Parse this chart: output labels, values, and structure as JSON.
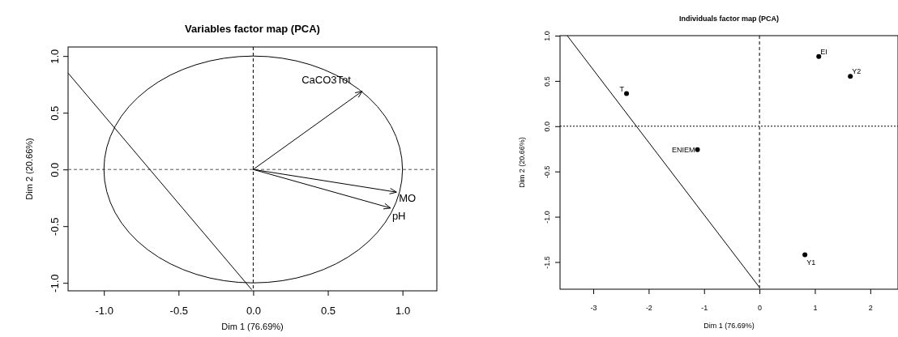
{
  "chart_data": [
    {
      "type": "line",
      "title": "Variables factor map (PCA)",
      "xlabel": "Dim 1 (76.69%)",
      "ylabel": "Dim 2 (20.66%)",
      "xlim": [
        -1.24,
        1.23
      ],
      "ylim": [
        -1.07,
        1.08
      ],
      "xticks": [
        {
          "value": -1,
          "label": "-1.0"
        },
        -0.5,
        {
          "value": 0,
          "label": "0.0"
        },
        0.5,
        {
          "value": 1,
          "label": "1.0"
        }
      ],
      "yticks": [
        {
          "value": -1,
          "label": "-1.0"
        },
        -0.5,
        {
          "value": 0,
          "label": "0.0"
        },
        0.5,
        {
          "value": 1,
          "label": "1.0"
        }
      ],
      "line_style": "solid",
      "series": [
        {
          "color": "#000000",
          "x": [
            -1.24,
            -0.01
          ],
          "values": [
            0.85,
            -1.06
          ]
        },
        {
          "color": "#000000",
          "x": [
            0,
            0.73
          ],
          "values": [
            0,
            0.69
          ]
        },
        {
          "color": "#000000",
          "x": [
            0,
            0.96
          ],
          "values": [
            0,
            -0.2
          ]
        },
        {
          "color": "#000000",
          "x": [
            0,
            0.92
          ],
          "values": [
            0,
            -0.34
          ]
        }
      ],
      "ref_lines": [
        {
          "axis": "x",
          "value": 0,
          "color": "#000000",
          "line_style": "dashed"
        },
        {
          "axis": "y",
          "value": 0,
          "color": "#555555",
          "line_style": "dashed"
        }
      ],
      "annotations": [
        {
          "text": "CaCO3Tot",
          "x": 0.73,
          "y": 0.69
        },
        {
          "text": "MO",
          "x": 0.96,
          "y": -0.2
        },
        {
          "text": "pH",
          "x": 0.92,
          "y": -0.34
        }
      ]
    },
    {
      "type": "scatter",
      "title": "Individuals factor map (PCA)",
      "xlabel": "Dim 1 (76.69%)",
      "ylabel": "Dim 2 (20.66%)",
      "xlim": [
        -3.6,
        2.5
      ],
      "ylim": [
        -1.8,
        1.0
      ],
      "xticks": [
        -3,
        -2,
        -1,
        0,
        1,
        2
      ],
      "yticks": [
        -1.5,
        {
          "value": -1,
          "label": "-1.0"
        },
        -0.5,
        {
          "value": 0,
          "label": "0.0"
        },
        0.5,
        {
          "value": 1,
          "label": "1.0"
        }
      ],
      "series": [
        {
          "color": "#000000",
          "marker": "circle",
          "x": [
            -2.4,
            -1.12,
            1.07,
            1.64,
            0.82
          ],
          "values": [
            0.36,
            -0.26,
            0.77,
            0.55,
            -1.42
          ]
        },
        {
          "type": "line",
          "color": "#000000",
          "marker": "none",
          "x": [
            -3.47,
            0
          ],
          "values": [
            1.0,
            -1.78
          ]
        }
      ],
      "ref_lines": [
        {
          "axis": "x",
          "value": 0,
          "color": "#000000",
          "line_style": "dashed"
        },
        {
          "axis": "y",
          "value": 0,
          "color": "#000000",
          "line_style": "dotted"
        }
      ],
      "annotations": [
        {
          "text": "T",
          "x": -2.4,
          "y": 0.36
        },
        {
          "text": "ENIEM",
          "x": -1.12,
          "y": -0.26
        },
        {
          "text": "EI",
          "x": 1.07,
          "y": 0.77
        },
        {
          "text": "Y2",
          "x": 1.64,
          "y": 0.55
        },
        {
          "text": "Y1",
          "x": 0.82,
          "y": -1.42
        }
      ]
    }
  ]
}
